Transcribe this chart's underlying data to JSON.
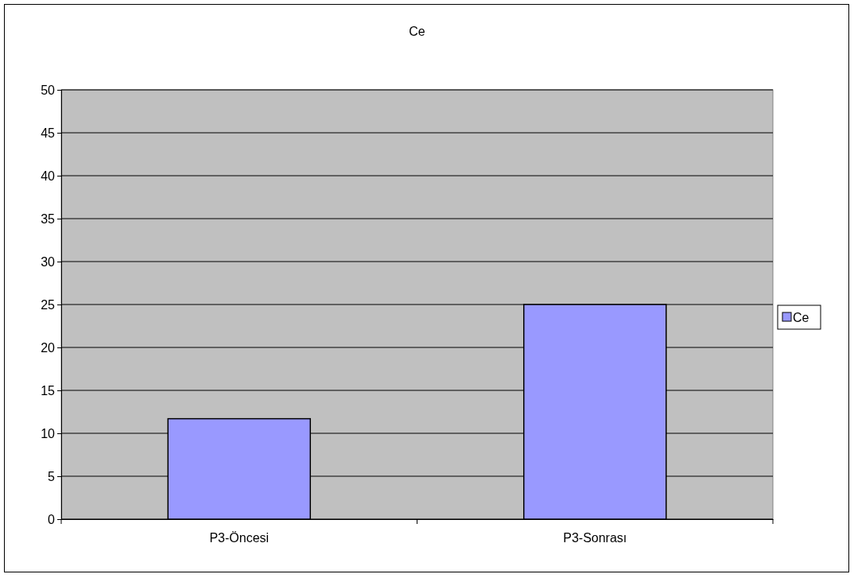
{
  "chart_data": {
    "type": "bar",
    "title": "Ce",
    "categories": [
      "P3-Öncesi",
      "P3-Sonrası"
    ],
    "series": [
      {
        "name": "Ce",
        "color": "#9999ff",
        "values": [
          11.7,
          25
        ]
      }
    ],
    "ylim": [
      0,
      50
    ],
    "yticks": [
      0,
      5,
      10,
      15,
      20,
      25,
      30,
      35,
      40,
      45,
      50
    ],
    "grid": "y",
    "legend": "right"
  }
}
